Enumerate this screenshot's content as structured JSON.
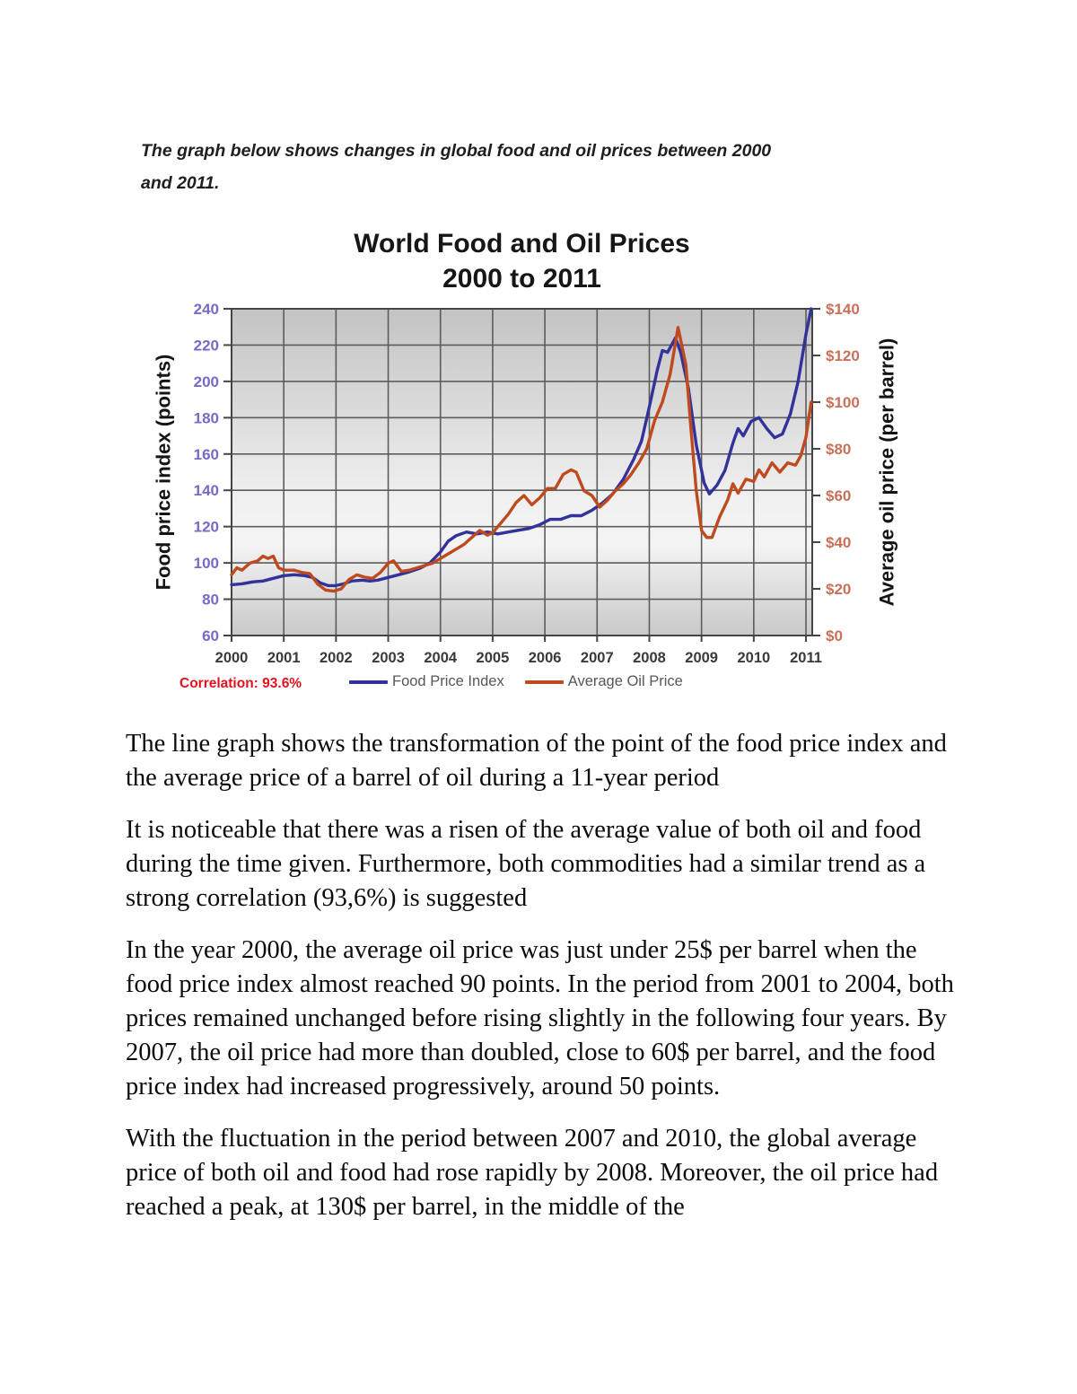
{
  "document": {
    "prompt": "The graph below shows changes in global food and oil prices between 2000\nand 2011.",
    "essay_paragraphs": [
      "The line graph shows the transformation of the point of the food price index and the average price of a barrel of oil during a 11-year period",
      "It is noticeable that there was a risen of the average value of both oil and food during the time given. Furthermore, both commodities had a similar trend as a strong correlation (93,6%) is suggested",
      "In the year 2000, the average oil price was just under 25$ per barrel when the food price index almost reached 90 points. In the period from 2001 to 2004, both prices remained unchanged before rising slightly in the following four years. By 2007, the oil price had more than doubled, close to 60$ per barrel, and the food price index had increased progressively, around 50 points.",
      "With the fluctuation in the period between 2007 and 2010, the global average price of both oil and food had rose rapidly by 2008. Moreover, the oil price had reached a peak, at 130$ per barrel, in the middle of the"
    ]
  },
  "chart_data": {
    "type": "line",
    "title": "World Food and Oil Prices\n2000 to 2011",
    "annotation": "Correlation: 93.6%",
    "annotation_color": "#e4121f",
    "grid": true,
    "legend_position": "bottom",
    "x": {
      "min": 2000,
      "max": 2011.12,
      "tick_years": [
        2000,
        2001,
        2002,
        2003,
        2004,
        2005,
        2006,
        2007,
        2008,
        2009,
        2010,
        2011
      ]
    },
    "y_left": {
      "label": "Food price index (points)",
      "min": 60,
      "max": 240,
      "tick_step": 20,
      "tick_color": "#7a68c8"
    },
    "y_right": {
      "label": "Average oil price (per barrel)",
      "min": 0,
      "max": 140,
      "tick_step": 20,
      "tick_prefix": "$",
      "tick_color": "#c9705a"
    },
    "series": [
      {
        "name": "Food Price Index",
        "axis": "left",
        "color": "#32329b",
        "points": [
          [
            2000.0,
            88
          ],
          [
            2000.2,
            88.5
          ],
          [
            2000.4,
            89.5
          ],
          [
            2000.6,
            90
          ],
          [
            2000.8,
            91.5
          ],
          [
            2001.0,
            93
          ],
          [
            2001.2,
            93.5
          ],
          [
            2001.4,
            93
          ],
          [
            2001.55,
            92
          ],
          [
            2001.7,
            89
          ],
          [
            2001.85,
            87.5
          ],
          [
            2002.0,
            87.5
          ],
          [
            2002.15,
            88.5
          ],
          [
            2002.3,
            90
          ],
          [
            2002.5,
            90.5
          ],
          [
            2002.65,
            90
          ],
          [
            2002.8,
            90.5
          ],
          [
            2003.0,
            92
          ],
          [
            2003.2,
            93.5
          ],
          [
            2003.4,
            95
          ],
          [
            2003.6,
            97
          ],
          [
            2003.8,
            100
          ],
          [
            2004.0,
            106
          ],
          [
            2004.15,
            112
          ],
          [
            2004.3,
            115
          ],
          [
            2004.5,
            117
          ],
          [
            2004.7,
            116
          ],
          [
            2004.9,
            117
          ],
          [
            2005.1,
            116
          ],
          [
            2005.3,
            117
          ],
          [
            2005.5,
            118
          ],
          [
            2005.7,
            119
          ],
          [
            2005.9,
            121
          ],
          [
            2006.1,
            124
          ],
          [
            2006.3,
            124
          ],
          [
            2006.5,
            126
          ],
          [
            2006.7,
            126
          ],
          [
            2006.9,
            129
          ],
          [
            2007.1,
            133
          ],
          [
            2007.3,
            138
          ],
          [
            2007.5,
            146
          ],
          [
            2007.7,
            157
          ],
          [
            2007.85,
            167
          ],
          [
            2008.0,
            186
          ],
          [
            2008.15,
            206
          ],
          [
            2008.25,
            217
          ],
          [
            2008.35,
            216
          ],
          [
            2008.5,
            224
          ],
          [
            2008.6,
            216
          ],
          [
            2008.75,
            196
          ],
          [
            2008.9,
            165
          ],
          [
            2009.05,
            144
          ],
          [
            2009.15,
            138
          ],
          [
            2009.3,
            143
          ],
          [
            2009.45,
            151
          ],
          [
            2009.6,
            166
          ],
          [
            2009.7,
            174
          ],
          [
            2009.8,
            170
          ],
          [
            2009.95,
            178
          ],
          [
            2010.1,
            180
          ],
          [
            2010.25,
            174
          ],
          [
            2010.4,
            169
          ],
          [
            2010.55,
            171
          ],
          [
            2010.7,
            182
          ],
          [
            2010.85,
            200
          ],
          [
            2011.0,
            226
          ],
          [
            2011.1,
            240
          ]
        ]
      },
      {
        "name": "Average Oil Price",
        "axis": "right",
        "color": "#be4a1e",
        "points": [
          [
            2000.0,
            26
          ],
          [
            2000.1,
            29
          ],
          [
            2000.2,
            28
          ],
          [
            2000.35,
            31
          ],
          [
            2000.5,
            32
          ],
          [
            2000.6,
            34
          ],
          [
            2000.7,
            33
          ],
          [
            2000.8,
            34
          ],
          [
            2000.9,
            29
          ],
          [
            2001.0,
            28
          ],
          [
            2001.2,
            28
          ],
          [
            2001.35,
            27
          ],
          [
            2001.5,
            26.5
          ],
          [
            2001.65,
            22
          ],
          [
            2001.8,
            19.5
          ],
          [
            2001.95,
            19
          ],
          [
            2002.1,
            20
          ],
          [
            2002.25,
            24
          ],
          [
            2002.4,
            26
          ],
          [
            2002.55,
            25
          ],
          [
            2002.7,
            24.5
          ],
          [
            2002.85,
            27
          ],
          [
            2003.0,
            31
          ],
          [
            2003.1,
            32
          ],
          [
            2003.25,
            27.5
          ],
          [
            2003.4,
            28
          ],
          [
            2003.55,
            29
          ],
          [
            2003.7,
            30
          ],
          [
            2003.85,
            31
          ],
          [
            2004.0,
            33
          ],
          [
            2004.15,
            35
          ],
          [
            2004.3,
            37
          ],
          [
            2004.45,
            39
          ],
          [
            2004.6,
            42
          ],
          [
            2004.75,
            45
          ],
          [
            2004.9,
            43
          ],
          [
            2005.0,
            44
          ],
          [
            2005.15,
            48
          ],
          [
            2005.3,
            52
          ],
          [
            2005.45,
            57
          ],
          [
            2005.6,
            60
          ],
          [
            2005.75,
            56
          ],
          [
            2005.9,
            59
          ],
          [
            2006.05,
            63
          ],
          [
            2006.2,
            63
          ],
          [
            2006.35,
            69
          ],
          [
            2006.5,
            71
          ],
          [
            2006.6,
            70
          ],
          [
            2006.75,
            62
          ],
          [
            2006.9,
            60
          ],
          [
            2007.05,
            55
          ],
          [
            2007.2,
            58
          ],
          [
            2007.35,
            62
          ],
          [
            2007.5,
            65
          ],
          [
            2007.65,
            69
          ],
          [
            2007.8,
            74
          ],
          [
            2007.95,
            80
          ],
          [
            2008.1,
            92
          ],
          [
            2008.25,
            100
          ],
          [
            2008.4,
            112
          ],
          [
            2008.55,
            132
          ],
          [
            2008.7,
            116
          ],
          [
            2008.8,
            88
          ],
          [
            2008.9,
            62
          ],
          [
            2009.0,
            45
          ],
          [
            2009.1,
            42
          ],
          [
            2009.2,
            42
          ],
          [
            2009.35,
            51
          ],
          [
            2009.5,
            58
          ],
          [
            2009.6,
            65
          ],
          [
            2009.7,
            61
          ],
          [
            2009.85,
            67
          ],
          [
            2010.0,
            66
          ],
          [
            2010.1,
            71
          ],
          [
            2010.2,
            68
          ],
          [
            2010.35,
            74
          ],
          [
            2010.5,
            70
          ],
          [
            2010.65,
            74
          ],
          [
            2010.8,
            73
          ],
          [
            2010.9,
            77
          ],
          [
            2011.0,
            85
          ],
          [
            2011.1,
            100
          ]
        ]
      }
    ]
  }
}
